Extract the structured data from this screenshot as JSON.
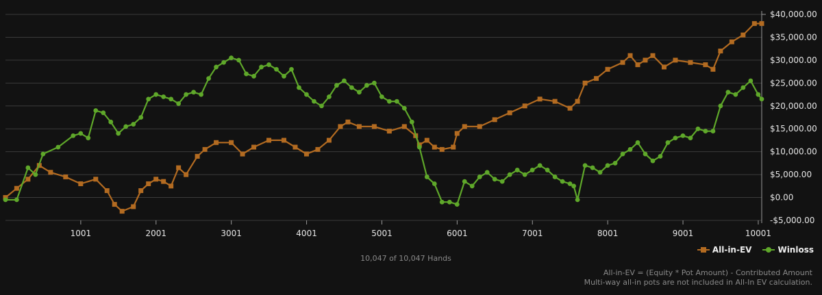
{
  "colors": {
    "background": "#121212",
    "grid": "#3b3b3b",
    "allin_ev": "#b36b21",
    "winloss": "#5fa82a"
  },
  "legend": {
    "allin_ev_label": "All-in-EV",
    "winloss_label": "Winloss"
  },
  "hands_text": "10,047 of 10,047 Hands",
  "notes": {
    "line1": "All-in-EV = (Equity * Pot Amount) - Contributed Amount",
    "line2": "Multi-way all-in pots are not included in All-In EV calculation."
  },
  "chart_data": {
    "type": "line",
    "x_tick_labels": [
      "1001",
      "2001",
      "3001",
      "4001",
      "5001",
      "6001",
      "7001",
      "8001",
      "9001",
      "10001"
    ],
    "x_ticks": [
      1001,
      2001,
      3001,
      4001,
      5001,
      6001,
      7001,
      8001,
      9001,
      10001
    ],
    "y_tick_labels": [
      "$40,000.00",
      "$35,000.00",
      "$30,000.00",
      "$25,000.00",
      "$20,000.00",
      "$15,000.00",
      "$10,000.00",
      "$5,000.00",
      "$0.00",
      "-$5,000.00"
    ],
    "y_ticks": [
      40000,
      35000,
      30000,
      25000,
      20000,
      15000,
      10000,
      5000,
      0,
      -5000
    ],
    "xlim": [
      1,
      10047
    ],
    "ylim": [
      -5000,
      40000
    ],
    "grid": true,
    "legend_position": "bottom-right",
    "series": [
      {
        "name": "All-in-EV",
        "marker": "square",
        "x": [
          1,
          150,
          300,
          450,
          600,
          800,
          1000,
          1200,
          1350,
          1450,
          1550,
          1700,
          1800,
          1900,
          2000,
          2100,
          2200,
          2300,
          2400,
          2550,
          2650,
          2800,
          3000,
          3150,
          3300,
          3500,
          3700,
          3850,
          4000,
          4150,
          4300,
          4450,
          4550,
          4700,
          4900,
          5100,
          5300,
          5450,
          5500,
          5600,
          5700,
          5800,
          5950,
          6000,
          6100,
          6300,
          6500,
          6700,
          6900,
          7100,
          7300,
          7500,
          7600,
          7700,
          7850,
          8000,
          8200,
          8300,
          8400,
          8500,
          8600,
          8750,
          8900,
          9100,
          9300,
          9400,
          9500,
          9650,
          9800,
          9950,
          10047
        ],
        "y": [
          0,
          2000,
          4000,
          7000,
          5500,
          4500,
          3000,
          4000,
          1500,
          -1500,
          -3000,
          -2000,
          1500,
          3000,
          4000,
          3500,
          2500,
          6500,
          5000,
          9000,
          10500,
          12000,
          12000,
          9500,
          11000,
          12500,
          12500,
          11000,
          9500,
          10500,
          12500,
          15500,
          16500,
          15500,
          15500,
          14500,
          15500,
          13500,
          11500,
          12500,
          11000,
          10500,
          11000,
          14000,
          15500,
          15500,
          17000,
          18500,
          20000,
          21500,
          21000,
          19500,
          21000,
          25000,
          26000,
          28000,
          29500,
          31000,
          29000,
          30000,
          31000,
          28500,
          30000,
          29500,
          29000,
          28000,
          32000,
          34000,
          35500,
          38000,
          38000
        ]
      },
      {
        "name": "Winloss",
        "marker": "circle",
        "x": [
          1,
          150,
          300,
          400,
          500,
          700,
          900,
          1000,
          1100,
          1200,
          1300,
          1400,
          1500,
          1600,
          1700,
          1800,
          1900,
          2000,
          2100,
          2200,
          2300,
          2400,
          2500,
          2600,
          2700,
          2800,
          2900,
          3000,
          3100,
          3200,
          3300,
          3400,
          3500,
          3600,
          3700,
          3800,
          3900,
          4000,
          4100,
          4200,
          4300,
          4400,
          4500,
          4600,
          4700,
          4800,
          4900,
          5000,
          5100,
          5200,
          5300,
          5400,
          5500,
          5600,
          5700,
          5800,
          5900,
          6000,
          6100,
          6200,
          6300,
          6400,
          6500,
          6600,
          6700,
          6800,
          6900,
          7000,
          7100,
          7200,
          7300,
          7400,
          7500,
          7550,
          7600,
          7700,
          7800,
          7900,
          8000,
          8100,
          8200,
          8300,
          8400,
          8500,
          8600,
          8700,
          8800,
          8900,
          9000,
          9100,
          9200,
          9300,
          9400,
          9500,
          9600,
          9700,
          9800,
          9900,
          10000,
          10047
        ],
        "y": [
          -500,
          -500,
          6500,
          5000,
          9500,
          11000,
          13500,
          14000,
          13000,
          19000,
          18500,
          16500,
          14000,
          15500,
          16000,
          17500,
          21500,
          22500,
          22000,
          21500,
          20500,
          22500,
          23000,
          22500,
          26000,
          28500,
          29500,
          30500,
          30000,
          27000,
          26500,
          28500,
          29000,
          28000,
          26500,
          28000,
          24000,
          22500,
          21000,
          20000,
          22000,
          24500,
          25500,
          24000,
          23000,
          24500,
          25000,
          22000,
          21000,
          21000,
          19500,
          16500,
          11000,
          4500,
          3000,
          -1000,
          -1000,
          -1500,
          3500,
          2500,
          4500,
          5500,
          4000,
          3500,
          5000,
          6000,
          5000,
          6000,
          7000,
          6000,
          4500,
          3500,
          3000,
          2500,
          -500,
          7000,
          6500,
          5500,
          7000,
          7500,
          9500,
          10500,
          12000,
          9500,
          8000,
          9000,
          12000,
          13000,
          13500,
          13000,
          15000,
          14500,
          14500,
          20000,
          23000,
          22500,
          24000,
          25500,
          22500,
          21500
        ]
      }
    ]
  }
}
